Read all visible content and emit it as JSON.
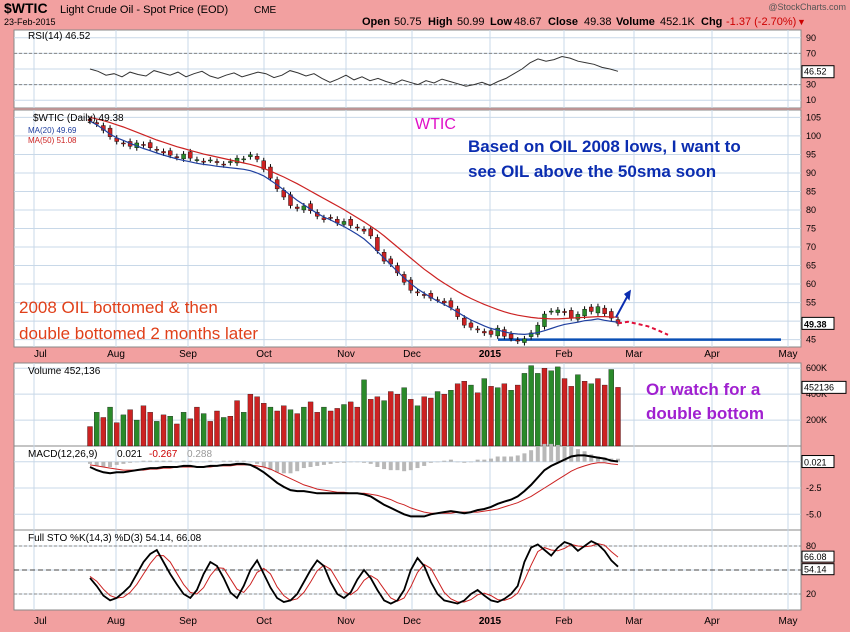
{
  "header": {
    "symbol": "$WTIC",
    "name": "Light Crude Oil - Spot Price (EOD)",
    "exchange": "CME",
    "date": "23-Feb-2015",
    "brand": "@StockCharts.com",
    "ohlc": {
      "open_label": "Open",
      "open": "50.75",
      "high_label": "High",
      "high": "50.99",
      "low_label": "Low",
      "low": "48.67",
      "close_label": "Close",
      "close": "49.38",
      "volume_label": "Volume",
      "volume": "452.1K",
      "chg_label": "Chg",
      "chg": "-1.37 (-2.70%)"
    }
  },
  "annotations": {
    "wtic_label": "WTIC",
    "note1_line1": "Based on OIL 2008 lows, I want to",
    "note1_line2": "see OIL above the 50sma soon",
    "note2_line1": "2008 OIL bottomed & then",
    "note2_line2": "double bottomed 2 months later",
    "note3_line1": "Or watch for a",
    "note3_line2": "double bottom"
  },
  "colors": {
    "background": "#f2a0a0",
    "panel": "#ffffff",
    "grid": "#c8d8e8",
    "ma20": "#1f3f9f",
    "ma50": "#cc2222",
    "up": "#2a8a2a",
    "down": "#cc2222",
    "annotation_blue": "#0b2db0",
    "annotation_red": "#e0401a",
    "annotation_magenta": "#e010c8",
    "annotation_purple": "#a020d0",
    "support_line": "#0a4fb5"
  },
  "x_axis": {
    "labels": [
      "Jul",
      "Aug",
      "Sep",
      "Oct",
      "Nov",
      "Dec",
      "2015",
      "Feb",
      "Mar",
      "Apr",
      "May"
    ]
  },
  "chart_data": [
    {
      "panel": "RSI",
      "type": "line",
      "legend": "RSI(14) 46.52",
      "current": "46.52",
      "y_ticks": [
        "90",
        "70",
        "50",
        "30",
        "10"
      ],
      "ylim": [
        0,
        100
      ],
      "values": [
        50,
        47,
        42,
        44,
        40,
        46,
        43,
        41,
        48,
        45,
        42,
        46,
        40,
        44,
        47,
        41,
        38,
        42,
        45,
        40,
        43,
        46,
        44,
        39,
        42,
        48,
        45,
        41,
        44,
        38,
        33,
        37,
        42,
        36,
        40,
        35,
        38,
        34,
        31,
        36,
        33,
        30,
        35,
        32,
        37,
        34,
        31,
        28,
        30,
        33,
        29,
        34,
        38,
        44,
        50,
        58,
        63,
        60,
        62,
        66,
        64,
        60,
        58,
        56,
        52,
        50,
        47
      ]
    },
    {
      "panel": "Price",
      "type": "line",
      "legend": "$WTIC (Daily) 49.38",
      "ma20_legend": "MA(20) 49.69",
      "ma50_legend": "MA(50) 51.08",
      "current": "49.38",
      "y_ticks": [
        "105",
        "100",
        "95",
        "90",
        "85",
        "80",
        "75",
        "70",
        "65",
        "60",
        "55",
        "50",
        "45"
      ],
      "ylim": [
        43,
        107
      ],
      "close": [
        104.0,
        103.2,
        101.5,
        99.8,
        98.5,
        97.9,
        97.2,
        98.1,
        97.6,
        96.8,
        96.2,
        95.4,
        94.8,
        94.2,
        95.1,
        94.0,
        93.6,
        92.9,
        93.5,
        92.8,
        92.2,
        93.1,
        94.0,
        93.8,
        94.9,
        93.7,
        91.0,
        88.6,
        85.7,
        83.5,
        81.2,
        80.4,
        81.1,
        79.8,
        78.3,
        77.4,
        77.9,
        76.5,
        76.9,
        75.8,
        75.2,
        74.3,
        73.0,
        69.0,
        66.2,
        65.4,
        63.0,
        60.5,
        58.3,
        57.6,
        56.9,
        56.2,
        55.8,
        54.9,
        53.7,
        51.2,
        48.9,
        48.3,
        47.6,
        46.8,
        46.4,
        48.1,
        45.9,
        45.3,
        44.6,
        45.2,
        46.8,
        48.9,
        51.9,
        52.7,
        53.0,
        52.3,
        50.9,
        51.8,
        53.2,
        52.6,
        53.9,
        52.0,
        50.8,
        49.4
      ],
      "ma20": [
        104.0,
        103.0,
        101.8,
        100.5,
        99.5,
        98.8,
        98.0,
        97.3,
        96.6,
        96.0,
        95.4,
        94.8,
        94.3,
        93.8,
        93.4,
        93.0,
        92.6,
        92.3,
        92.1,
        91.8,
        91.6,
        91.4,
        91.2,
        91.0,
        90.6,
        90.0,
        89.2,
        88.0,
        86.8,
        85.4,
        84.0,
        82.6,
        81.4,
        80.2,
        79.1,
        78.1,
        77.3,
        76.4,
        75.5,
        74.5,
        73.4,
        72.2,
        70.6,
        68.8,
        67.0,
        65.2,
        63.4,
        61.7,
        60.1,
        58.7,
        57.5,
        56.4,
        55.4,
        54.5,
        53.5,
        52.4,
        51.3,
        50.3,
        49.5,
        48.7,
        48.0,
        47.6,
        47.1,
        46.7,
        46.5,
        46.4,
        46.6,
        46.9,
        47.4,
        48.0,
        48.6,
        49.1,
        49.4,
        49.7,
        50.1,
        50.3,
        50.6,
        50.2,
        49.9,
        49.7
      ],
      "ma50": [
        105.0,
        104.6,
        104.1,
        103.6,
        103.0,
        102.4,
        101.7,
        101.0,
        100.3,
        99.6,
        98.9,
        98.3,
        97.7,
        97.1,
        96.6,
        96.1,
        95.6,
        95.1,
        94.7,
        94.3,
        93.9,
        93.5,
        93.1,
        92.7,
        92.3,
        91.8,
        91.2,
        90.5,
        89.7,
        88.9,
        88.0,
        87.1,
        86.1,
        85.1,
        84.1,
        83.1,
        82.1,
        81.1,
        80.1,
        79.0,
        77.9,
        76.8,
        75.6,
        74.4,
        73.0,
        71.5,
        70.0,
        68.5,
        67.0,
        65.5,
        64.0,
        62.7,
        61.4,
        60.2,
        59.1,
        58.0,
        57.0,
        56.1,
        55.3,
        54.5,
        53.8,
        53.1,
        52.5,
        52.0,
        51.6,
        51.3,
        51.0,
        50.8,
        50.7,
        50.6,
        50.6,
        50.7,
        50.8,
        50.9,
        51.0,
        51.1,
        51.2,
        51.2,
        51.1,
        51.08
      ],
      "support_level": 45.0,
      "projection": [
        49.38,
        49.8,
        49.2,
        48.6,
        47.5,
        46.3
      ]
    },
    {
      "panel": "Volume",
      "type": "bar",
      "legend": "Volume 452,136",
      "current": "452136",
      "y_ticks": [
        "600K",
        "400K",
        "200K"
      ],
      "ylim": [
        0,
        640000
      ],
      "values": [
        150000,
        260000,
        220000,
        300000,
        180000,
        240000,
        280000,
        200000,
        310000,
        260000,
        190000,
        240000,
        230000,
        170000,
        260000,
        210000,
        300000,
        250000,
        190000,
        270000,
        220000,
        230000,
        350000,
        260000,
        400000,
        380000,
        330000,
        300000,
        270000,
        310000,
        280000,
        250000,
        300000,
        340000,
        260000,
        300000,
        270000,
        290000,
        320000,
        340000,
        300000,
        510000,
        360000,
        380000,
        350000,
        420000,
        400000,
        450000,
        360000,
        310000,
        380000,
        370000,
        420000,
        400000,
        430000,
        480000,
        500000,
        470000,
        410000,
        520000,
        460000,
        450000,
        480000,
        430000,
        470000,
        560000,
        620000,
        560000,
        600000,
        580000,
        610000,
        520000,
        460000,
        550000,
        500000,
        480000,
        520000,
        470000,
        590000,
        452136
      ],
      "up": [
        false,
        true,
        false,
        true,
        false,
        true,
        false,
        true,
        false,
        false,
        true,
        false,
        true,
        false,
        true,
        false,
        false,
        true,
        false,
        false,
        true,
        false,
        false,
        true,
        false,
        false,
        false,
        true,
        false,
        false,
        true,
        false,
        true,
        false,
        false,
        true,
        false,
        false,
        true,
        false,
        false,
        true,
        false,
        false,
        true,
        false,
        false,
        true,
        false,
        true,
        false,
        false,
        true,
        false,
        true,
        false,
        false,
        true,
        false,
        true,
        false,
        true,
        false,
        true,
        false,
        true,
        true,
        true,
        false,
        true,
        true,
        false,
        false,
        true,
        false,
        true,
        false,
        false,
        true,
        false
      ]
    },
    {
      "panel": "MACD",
      "type": "line",
      "legend_macd": "MACD(12,26,9)",
      "macd_value": "0.021",
      "signal_value": "-0.267",
      "hist_value": "0.288",
      "current": "0.021",
      "y_ticks": [
        "0.0",
        "-2.5",
        "-5.0"
      ],
      "ylim": [
        -6.5,
        1.5
      ],
      "macd": [
        -0.5,
        -0.8,
        -1.0,
        -1.1,
        -1.0,
        -1.0,
        -0.9,
        -0.8,
        -0.7,
        -0.6,
        -0.6,
        -0.5,
        -0.5,
        -0.5,
        -0.4,
        -0.4,
        -0.5,
        -0.5,
        -0.4,
        -0.4,
        -0.3,
        -0.3,
        -0.2,
        -0.2,
        -0.3,
        -0.6,
        -1.0,
        -1.5,
        -2.0,
        -2.4,
        -2.7,
        -2.8,
        -2.8,
        -2.9,
        -3.0,
        -3.0,
        -3.0,
        -3.0,
        -3.0,
        -3.0,
        -3.0,
        -3.1,
        -3.3,
        -3.7,
        -4.1,
        -4.4,
        -4.7,
        -5.0,
        -5.2,
        -5.2,
        -5.2,
        -5.0,
        -4.9,
        -4.8,
        -4.7,
        -4.8,
        -4.9,
        -4.8,
        -4.6,
        -4.5,
        -4.3,
        -4.0,
        -3.8,
        -3.6,
        -3.3,
        -2.8,
        -2.2,
        -1.5,
        -0.8,
        -0.4,
        -0.1,
        0.2,
        0.5,
        0.6,
        0.6,
        0.5,
        0.4,
        0.3,
        0.1,
        0.021
      ],
      "signal": [
        -0.3,
        -0.4,
        -0.5,
        -0.6,
        -0.7,
        -0.8,
        -0.8,
        -0.8,
        -0.8,
        -0.7,
        -0.7,
        -0.6,
        -0.6,
        -0.5,
        -0.5,
        -0.5,
        -0.5,
        -0.5,
        -0.5,
        -0.4,
        -0.4,
        -0.4,
        -0.3,
        -0.3,
        -0.3,
        -0.4,
        -0.5,
        -0.7,
        -1.0,
        -1.3,
        -1.6,
        -1.9,
        -2.2,
        -2.4,
        -2.6,
        -2.7,
        -2.8,
        -2.9,
        -2.9,
        -3.0,
        -3.0,
        -3.0,
        -3.1,
        -3.2,
        -3.4,
        -3.6,
        -3.9,
        -4.1,
        -4.4,
        -4.6,
        -4.8,
        -4.9,
        -4.9,
        -4.9,
        -4.9,
        -4.8,
        -4.8,
        -4.8,
        -4.8,
        -4.7,
        -4.6,
        -4.5,
        -4.3,
        -4.1,
        -3.9,
        -3.6,
        -3.3,
        -2.9,
        -2.5,
        -2.1,
        -1.7,
        -1.3,
        -0.9,
        -0.6,
        -0.4,
        -0.2,
        -0.1,
        -0.1,
        -0.2,
        -0.267
      ]
    },
    {
      "panel": "Stochastic",
      "type": "line",
      "legend": "Full STO %K(14,3) %D(3) 54.14, 66.08",
      "k_value": "54.14",
      "d_value": "66.08",
      "y_ticks": [
        "80",
        "50",
        "20"
      ],
      "ylim": [
        0,
        100
      ],
      "k": [
        40,
        30,
        18,
        12,
        15,
        22,
        30,
        45,
        60,
        70,
        75,
        60,
        45,
        32,
        20,
        15,
        25,
        45,
        60,
        55,
        40,
        22,
        15,
        30,
        50,
        62,
        45,
        28,
        15,
        10,
        12,
        20,
        35,
        50,
        62,
        55,
        35,
        20,
        15,
        22,
        38,
        50,
        40,
        25,
        12,
        8,
        12,
        25,
        50,
        65,
        55,
        35,
        20,
        12,
        10,
        8,
        12,
        20,
        25,
        18,
        12,
        10,
        14,
        20,
        30,
        60,
        78,
        82,
        75,
        68,
        78,
        85,
        82,
        74,
        80,
        86,
        82,
        74,
        62,
        54.14
      ],
      "d": [
        42,
        36,
        26,
        18,
        15,
        16,
        22,
        32,
        45,
        58,
        68,
        68,
        60,
        46,
        32,
        22,
        20,
        28,
        43,
        53,
        52,
        39,
        26,
        22,
        32,
        47,
        52,
        45,
        29,
        18,
        12,
        14,
        22,
        35,
        49,
        56,
        51,
        37,
        23,
        19,
        25,
        37,
        43,
        38,
        26,
        15,
        11,
        15,
        29,
        47,
        57,
        52,
        37,
        22,
        14,
        10,
        10,
        13,
        19,
        21,
        18,
        13,
        12,
        15,
        21,
        37,
        56,
        73,
        78,
        75,
        74,
        77,
        82,
        80,
        79,
        80,
        83,
        81,
        73,
        66.08
      ]
    }
  ]
}
